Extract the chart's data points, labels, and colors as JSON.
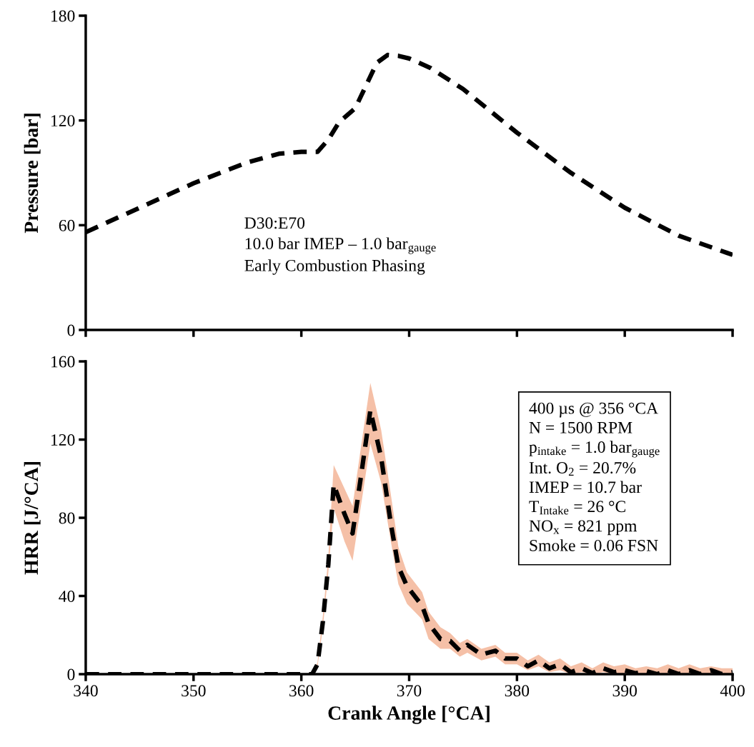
{
  "chart_data": [
    {
      "type": "line",
      "ylabel": "Pressure [bar]",
      "xlim": [
        340,
        400
      ],
      "ylim": [
        0,
        180
      ],
      "xticks": [
        340,
        350,
        360,
        370,
        380,
        390,
        400
      ],
      "yticks": [
        0,
        60,
        120,
        180
      ],
      "tick_labels": "y",
      "line_style": "dashed",
      "grid": false,
      "annotations": [
        "D30:E70\n10.0 bar IMEP – 1.0 bar$_{gauge}$\nEarly Combustion Phasing"
      ],
      "series": [
        {
          "color": "#000000",
          "x": [
            340,
            345,
            350,
            355,
            358,
            360,
            361.5,
            362.5,
            363.5,
            365,
            366,
            367,
            368,
            369,
            370,
            372,
            375,
            380,
            385,
            390,
            395,
            400
          ],
          "values": [
            56,
            70,
            84,
            96,
            101,
            102,
            102,
            109,
            119,
            127,
            140,
            153,
            157.5,
            157,
            155.5,
            150,
            138,
            113,
            90,
            70,
            54,
            43
          ]
        }
      ]
    },
    {
      "type": "line",
      "ylabel": "HRR [J/°CA]",
      "xlabel": "Crank Angle [°CA]",
      "xlim": [
        340,
        400
      ],
      "ylim": [
        0,
        160
      ],
      "xticks": [
        340,
        350,
        360,
        370,
        380,
        390,
        400
      ],
      "yticks": [
        0,
        40,
        80,
        120,
        160
      ],
      "line_style": "dashed",
      "grid": false,
      "annotations": [
        "400 µs @ 356 °CA\nN = 1500 RPM\np$_{intake}$ = 1.0 bar$_{gauge}$\nInt. O$_{2}$ = 20.7%\nIMEP = 10.7 bar\nT$_{Intake}$ = 26 °C\nNO$_{x}$ = 821 ppm\nSmoke = 0.06 FSN"
      ],
      "series": [
        {
          "color": "#000000",
          "x": [
            340,
            361,
            361.5,
            362,
            362.5,
            363,
            364,
            364.75,
            365.5,
            366.4,
            367.4,
            368.3,
            369,
            369.8,
            371.2,
            371.8,
            372.9,
            373.8,
            374.7,
            375.4,
            376.7,
            378,
            378.9,
            380,
            381,
            382,
            383,
            384,
            385,
            386,
            387,
            388,
            389,
            390,
            391,
            392,
            393,
            394,
            395,
            396,
            397,
            398,
            399,
            400
          ],
          "values": [
            0,
            0,
            5,
            27,
            56,
            97,
            82,
            72,
            100,
            135,
            111,
            77,
            55,
            45,
            35,
            26,
            18,
            17,
            12,
            15,
            10,
            12,
            8,
            8,
            4,
            7,
            3,
            5,
            1,
            3,
            0.5,
            3,
            1,
            2,
            0.5,
            1.5,
            0,
            2,
            0,
            2,
            0,
            2,
            0,
            1
          ],
          "lower": [
            0,
            0,
            4,
            24,
            52,
            85,
            68,
            58,
            85,
            118,
            98,
            68,
            46,
            36,
            28,
            18,
            13,
            13,
            9,
            11,
            7,
            9,
            5,
            5,
            2,
            4,
            1,
            2,
            0,
            1,
            0,
            1,
            0,
            0.5,
            0,
            0,
            0,
            0.5,
            0,
            0.5,
            0,
            0.5,
            0,
            0
          ],
          "upper": [
            0,
            0,
            6,
            30,
            60,
            107,
            95,
            86,
            115,
            149,
            125,
            92,
            65,
            52,
            42,
            32,
            24,
            21,
            16,
            18,
            13,
            15,
            11,
            11,
            7,
            10,
            6,
            8,
            4,
            6,
            3,
            6,
            4,
            5,
            3,
            4,
            3,
            5,
            3,
            5,
            3,
            4,
            3,
            3
          ]
        }
      ]
    }
  ]
}
